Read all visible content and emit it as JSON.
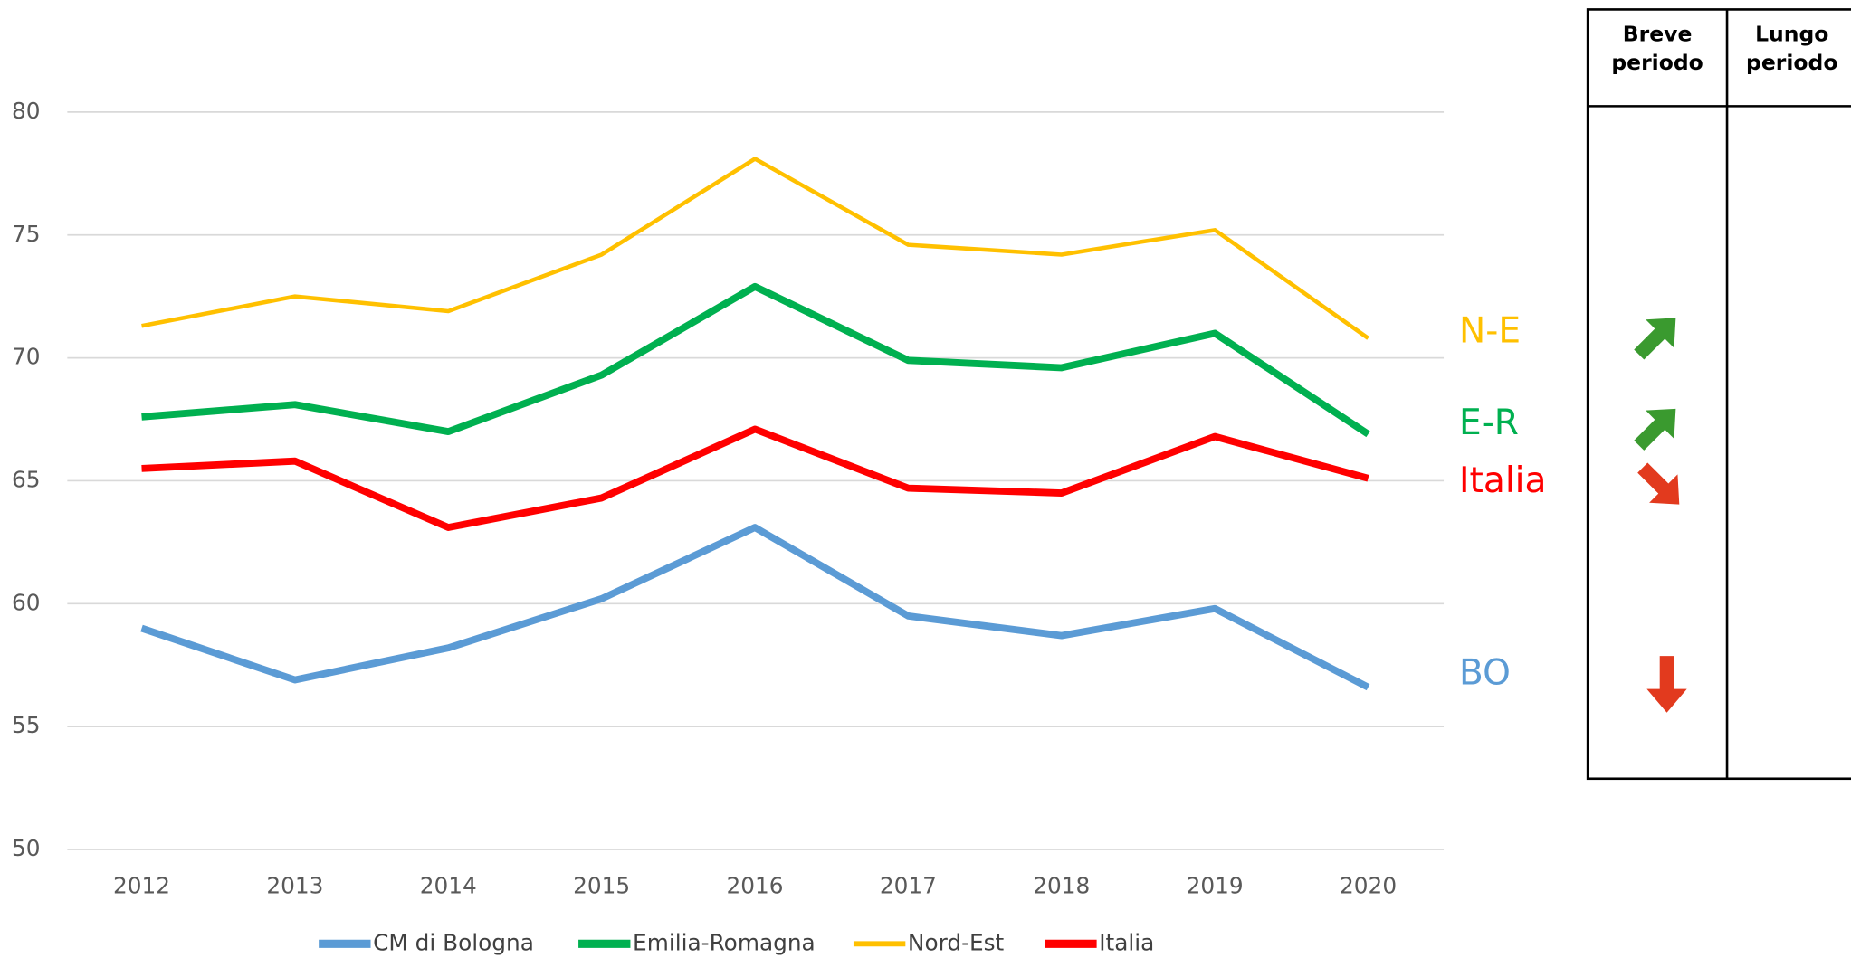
{
  "chart_data": {
    "type": "line",
    "categories": [
      "2012",
      "2013",
      "2014",
      "2015",
      "2016",
      "2017",
      "2018",
      "2019",
      "2020"
    ],
    "series": [
      {
        "name": "CM di Bologna",
        "color": "#5b9bd5",
        "values": [
          59.0,
          56.9,
          58.2,
          60.2,
          63.1,
          59.5,
          58.7,
          59.8,
          56.6
        ]
      },
      {
        "name": "Emilia-Romagna",
        "color": "#00b050",
        "values": [
          67.6,
          68.1,
          67.0,
          69.3,
          72.9,
          69.9,
          69.6,
          71.0,
          66.9
        ]
      },
      {
        "name": "Nord-Est",
        "color": "#ffc000",
        "values": [
          71.3,
          72.5,
          71.9,
          74.2,
          78.1,
          74.6,
          74.2,
          75.2,
          70.8
        ]
      },
      {
        "name": "Italia",
        "color": "#ff0000",
        "values": [
          65.5,
          65.8,
          63.1,
          64.3,
          67.1,
          64.7,
          64.5,
          66.8,
          65.1
        ]
      }
    ],
    "ylim": [
      50,
      80
    ],
    "yticks": [
      50,
      55,
      60,
      65,
      70,
      75,
      80
    ],
    "grid": true,
    "legend": "bottom",
    "annotations": [
      "N-E",
      "E-R",
      "Italia",
      "BO"
    ],
    "table_headers": [
      "Breve periodo",
      "Lungo periodo"
    ]
  }
}
